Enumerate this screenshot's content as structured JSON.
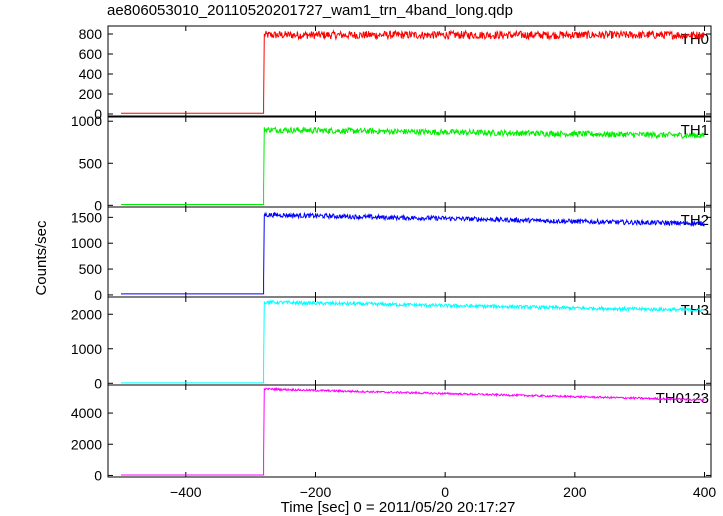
{
  "chart_data": {
    "type": "line",
    "title": "ae806053010_20110520201727_wam1_trn_4band_long.qdp",
    "xlabel": "Time [sec] 0 = 2011/05/20 20:17:27",
    "ylabel": "Counts/sec",
    "xlim": [
      -520,
      410
    ],
    "xticks": [
      -400,
      -200,
      0,
      200,
      400
    ],
    "xtick_labels": [
      "−400",
      "−200",
      "0",
      "200",
      "400"
    ],
    "grid": false,
    "legend": "none",
    "x_start": -500,
    "x_step": 900,
    "series": [
      {
        "name": "TH0",
        "color": "#ff0000",
        "ylim": [
          -20,
          880
        ],
        "yticks": [
          0,
          200,
          400,
          600,
          800
        ],
        "x": [
          -500,
          -280,
          -280,
          -279,
          -200,
          -100,
          0,
          100,
          200,
          300,
          400
        ],
        "y": [
          7,
          7,
          100,
          790,
          790,
          790,
          790,
          790,
          790,
          790,
          790
        ],
        "noise_amplitude": 40
      },
      {
        "name": "TH1",
        "color": "#00ee00",
        "ylim": [
          -20,
          1050
        ],
        "yticks": [
          0,
          500,
          1000
        ],
        "x": [
          -500,
          -280,
          -280,
          -279,
          -200,
          -100,
          0,
          100,
          200,
          300,
          400
        ],
        "y": [
          10,
          10,
          200,
          900,
          890,
          880,
          870,
          860,
          850,
          840,
          830
        ],
        "noise_amplitude": 35
      },
      {
        "name": "TH2",
        "color": "#0000ff",
        "ylim": [
          -40,
          1700
        ],
        "yticks": [
          0,
          500,
          1000,
          1500
        ],
        "x": [
          -500,
          -280,
          -280,
          -279,
          -200,
          -100,
          0,
          100,
          200,
          300,
          400
        ],
        "y": [
          20,
          20,
          300,
          1550,
          1530,
          1500,
          1480,
          1450,
          1420,
          1400,
          1380
        ],
        "noise_amplitude": 45
      },
      {
        "name": "TH3",
        "color": "#00ffff",
        "ylim": [
          -50,
          2500
        ],
        "yticks": [
          0,
          1000,
          2000
        ],
        "x": [
          -500,
          -280,
          -280,
          -279,
          -200,
          -100,
          0,
          100,
          200,
          300,
          400
        ],
        "y": [
          10,
          10,
          500,
          2350,
          2320,
          2290,
          2250,
          2220,
          2180,
          2150,
          2120
        ],
        "noise_amplitude": 50
      },
      {
        "name": "TH0123",
        "color": "#ff00ff",
        "ylim": [
          -100,
          5800
        ],
        "yticks": [
          0,
          2000,
          4000
        ],
        "x": [
          -500,
          -280,
          -280,
          -279,
          -200,
          -100,
          0,
          100,
          200,
          300,
          400
        ],
        "y": [
          30,
          30,
          1200,
          5550,
          5450,
          5350,
          5250,
          5150,
          5050,
          4950,
          4850
        ],
        "noise_amplitude": 60
      }
    ]
  }
}
